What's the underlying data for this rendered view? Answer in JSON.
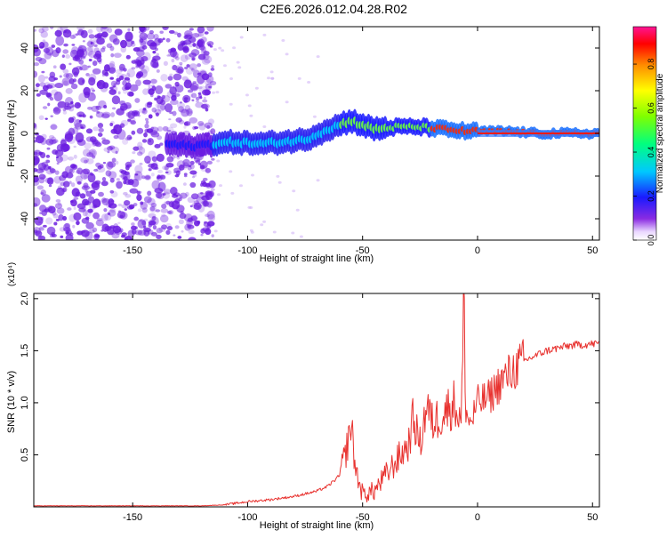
{
  "title": "C2E6.2026.012.04.28.R02",
  "colors": {
    "snr_line": "#e8322f",
    "spectrum_dot": "#6a1be0",
    "axis": "#000000"
  },
  "chart_data": [
    {
      "type": "heatmap",
      "title": "C2E6.2026.012.04.28.R02",
      "xlabel": "Height of straight line (km)",
      "ylabel": "Frequency (Hz)",
      "xlim": [
        -193,
        53
      ],
      "ylim": [
        -50,
        50
      ],
      "xticks": [
        -150,
        -100,
        -50,
        0,
        50
      ],
      "yticks": [
        -40,
        -20,
        0,
        20,
        40
      ],
      "xtick_labels": [
        "-150",
        "-100",
        "-50",
        "0",
        "50"
      ],
      "ytick_labels": [
        "-40",
        "-20",
        "0",
        "20",
        "40"
      ],
      "colorbar": {
        "label": "Normalized spectral amplitude",
        "range": [
          0,
          0.97
        ],
        "ticks": [
          0.0,
          0.2,
          0.4,
          0.6,
          0.8
        ],
        "tick_labels": [
          "0.0",
          "0.2",
          "0.4",
          "0.6",
          "0.8"
        ]
      },
      "noise_region_x": [
        -193,
        -115
      ],
      "ridge": {
        "x": [
          -135,
          -125,
          -115,
          -105,
          -95,
          -85,
          -75,
          -65,
          -55,
          -45,
          -35,
          -25,
          -15,
          -5,
          5,
          15,
          25,
          35,
          45,
          53
        ],
        "y": [
          -5,
          -6,
          -5,
          -4,
          -5,
          -4,
          -3,
          2,
          6,
          2,
          3,
          3,
          2,
          1,
          1,
          1,
          0,
          0,
          0,
          0
        ]
      }
    },
    {
      "type": "line",
      "xlabel": "Height of straight line (km)",
      "ylabel": "SNR (10 * v/v)",
      "scale_label": "(x10⁴)",
      "xlim": [
        -193,
        53
      ],
      "ylim": [
        0,
        2.05
      ],
      "xticks": [
        -150,
        -100,
        -50,
        0,
        50
      ],
      "yticks": [
        0.5,
        1.0,
        1.5,
        2.0
      ],
      "xtick_labels": [
        "-150",
        "-100",
        "-50",
        "0",
        "50"
      ],
      "ytick_labels": [
        "0.5",
        "1.0",
        "1.5",
        "2.0"
      ],
      "series": [
        {
          "name": "SNR",
          "x": [
            -193,
            -180,
            -160,
            -140,
            -120,
            -110,
            -100,
            -90,
            -80,
            -70,
            -65,
            -60,
            -57,
            -55,
            -53,
            -50,
            -45,
            -40,
            -35,
            -30,
            -28,
            -25,
            -22,
            -20,
            -15,
            -10,
            -7,
            -6,
            -5,
            -3,
            0,
            5,
            10,
            15,
            20,
            30,
            40,
            53
          ],
          "y": [
            0.01,
            0.01,
            0.01,
            0.01,
            0.01,
            0.02,
            0.05,
            0.07,
            0.1,
            0.15,
            0.2,
            0.3,
            0.55,
            0.8,
            0.35,
            0.12,
            0.15,
            0.3,
            0.45,
            0.6,
            0.85,
            0.6,
            1.0,
            0.8,
            0.9,
            1.0,
            0.8,
            2.05,
            0.9,
            0.8,
            1.0,
            1.05,
            1.2,
            1.3,
            1.4,
            1.5,
            1.55,
            1.57
          ]
        }
      ]
    }
  ]
}
